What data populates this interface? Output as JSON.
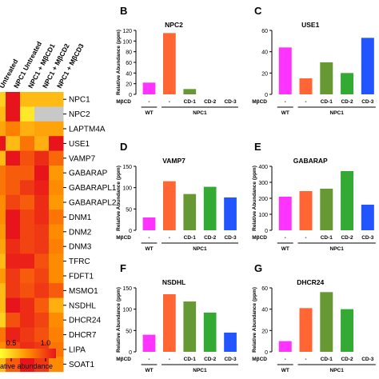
{
  "heatmap": {
    "col_labels": [
      "Untreated",
      "NPC1 Untreated",
      "NPC1 + MβCD1",
      "NPC1 + MβCD2",
      "NPC1 + MβCD3"
    ],
    "row_labels": [
      "NPC1",
      "NPC2",
      "LAPTM4A",
      "USE1",
      "VAMP7",
      "GABARAP",
      "GABARAPL1",
      "GABARAPL2",
      "DNM1",
      "DNM2",
      "DNM3",
      "TFRC",
      "FDFT1",
      "MSMO1",
      "NSDHL",
      "DHCR24",
      "DHCR7",
      "LIPA",
      "SOAT1"
    ],
    "scale_ticks": [
      "0.5",
      "1.0"
    ],
    "scale_label": "ative abundance",
    "colors": {
      "low": "#ffff33",
      "mid": "#ff8c00",
      "high": "#e8141c",
      "missing": "#c8c8c8"
    }
  },
  "chart_data": [
    {
      "type": "heatmap",
      "panel": "A",
      "rows": [
        "NPC1",
        "NPC2",
        "LAPTM4A",
        "USE1",
        "VAMP7",
        "GABARAP",
        "GABARAPL1",
        "GABARAPL2",
        "DNM1",
        "DNM2",
        "DNM3",
        "TFRC",
        "FDFT1",
        "MSMO1",
        "NSDHL",
        "DHCR24",
        "DHCR7",
        "LIPA",
        "SOAT1"
      ],
      "columns": [
        "Untreated",
        "NPC1 Untreated",
        "NPC1 + MβCD1",
        "NPC1 + MβCD2",
        "NPC1 + MβCD3"
      ],
      "visible_columns": [
        1,
        2,
        3,
        4
      ],
      "values": [
        [
          0.2,
          1.0,
          0.3,
          0.3,
          0.3
        ],
        [
          0.3,
          1.0,
          0.1,
          null,
          null
        ],
        [
          0.4,
          0.55,
          0.35,
          0.4,
          0.4
        ],
        [
          1.0,
          0.3,
          0.6,
          0.35,
          1.0
        ],
        [
          0.3,
          1.0,
          0.75,
          0.9,
          0.65
        ],
        [
          0.6,
          0.7,
          0.7,
          1.0,
          0.45
        ],
        [
          0.6,
          0.7,
          0.85,
          0.95,
          0.5
        ],
        [
          0.5,
          0.8,
          0.7,
          0.9,
          0.45
        ],
        [
          0.5,
          1.0,
          0.8,
          0.9,
          0.6
        ],
        [
          0.45,
          1.0,
          0.8,
          0.85,
          0.5
        ],
        [
          0.4,
          0.9,
          0.8,
          0.85,
          0.55
        ],
        [
          0.3,
          0.95,
          0.95,
          0.75,
          0.5
        ],
        [
          0.45,
          0.85,
          0.7,
          0.8,
          0.5
        ],
        [
          0.3,
          0.85,
          0.75,
          0.85,
          0.7
        ],
        [
          0.3,
          1.0,
          0.9,
          0.7,
          0.35
        ],
        [
          0.2,
          0.75,
          0.9,
          0.8,
          0.5
        ],
        [
          0.6,
          0.95,
          0.85,
          0.75,
          0.55
        ],
        [
          0.5,
          0.8,
          0.9,
          0.85,
          0.6
        ],
        [
          0.3,
          0.7,
          1.0,
          0.85,
          0.5
        ]
      ],
      "scale": [
        0.0,
        1.0
      ]
    },
    {
      "type": "bar",
      "panel": "B",
      "title": "NPC2",
      "ylabel": "Relative Abundance (ppm)",
      "ylim": [
        0,
        120
      ],
      "yticks": [
        0,
        20,
        40,
        60,
        80,
        100,
        120
      ],
      "categories": [
        "-",
        "-",
        "CD-1",
        "CD-2",
        "CD-3"
      ],
      "values": [
        22,
        115,
        10,
        0,
        0
      ],
      "colors": [
        "#ff33ff",
        "#ff6633",
        "#669933",
        "#33aa33",
        "#2255ff"
      ]
    },
    {
      "type": "bar",
      "panel": "C",
      "title": "USE1",
      "ylabel": "",
      "ylim": [
        0,
        60
      ],
      "yticks": [
        0,
        20,
        40,
        60
      ],
      "categories": [
        "-",
        "-",
        "CD-1",
        "CD-2",
        "CD-3"
      ],
      "values": [
        44,
        15,
        30,
        20,
        53
      ],
      "colors": [
        "#ff33ff",
        "#ff6633",
        "#669933",
        "#33aa33",
        "#2255ff"
      ]
    },
    {
      "type": "bar",
      "panel": "D",
      "title": "VAMP7",
      "ylabel": "Relative Abundance (ppm)",
      "ylim": [
        0,
        150
      ],
      "yticks": [
        0,
        50,
        100,
        150
      ],
      "categories": [
        "-",
        "-",
        "CD-1",
        "CD-2",
        "CD-3"
      ],
      "values": [
        30,
        115,
        85,
        102,
        77
      ],
      "colors": [
        "#ff33ff",
        "#ff6633",
        "#669933",
        "#33aa33",
        "#2255ff"
      ]
    },
    {
      "type": "bar",
      "panel": "E",
      "title": "GABARAP",
      "ylabel": "Relative Abundance (ppm)",
      "ylim": [
        0,
        400
      ],
      "yticks": [
        0,
        100,
        200,
        300,
        400
      ],
      "categories": [
        "-",
        "-",
        "CD-1",
        "CD-2",
        "CD-3"
      ],
      "values": [
        210,
        245,
        260,
        370,
        160
      ],
      "colors": [
        "#ff33ff",
        "#ff6633",
        "#669933",
        "#33aa33",
        "#2255ff"
      ]
    },
    {
      "type": "bar",
      "panel": "F",
      "title": "NSDHL",
      "ylabel": "Relative Abundance (ppm)",
      "ylim": [
        0,
        150
      ],
      "yticks": [
        0,
        50,
        100,
        150
      ],
      "categories": [
        "-",
        "-",
        "CD-1",
        "CD-2",
        "CD-3"
      ],
      "values": [
        40,
        135,
        118,
        92,
        45
      ],
      "colors": [
        "#ff33ff",
        "#ff6633",
        "#669933",
        "#33aa33",
        "#2255ff"
      ]
    },
    {
      "type": "bar",
      "panel": "G",
      "title": "DHCR24",
      "ylabel": "Relative Abundance (ppm)",
      "ylim": [
        0,
        60
      ],
      "yticks": [
        0,
        20,
        40,
        60
      ],
      "categories": [
        "-",
        "-",
        "CD-1",
        "CD-2",
        "CD-3"
      ],
      "values": [
        10,
        41,
        56,
        40,
        0
      ],
      "colors": [
        "#ff33ff",
        "#ff6633",
        "#669933",
        "#33aa33",
        "#2255ff"
      ]
    }
  ],
  "bar_panels": {
    "group_left": "WT",
    "group_right": "NPC1",
    "treatment_label": "MβCD"
  }
}
